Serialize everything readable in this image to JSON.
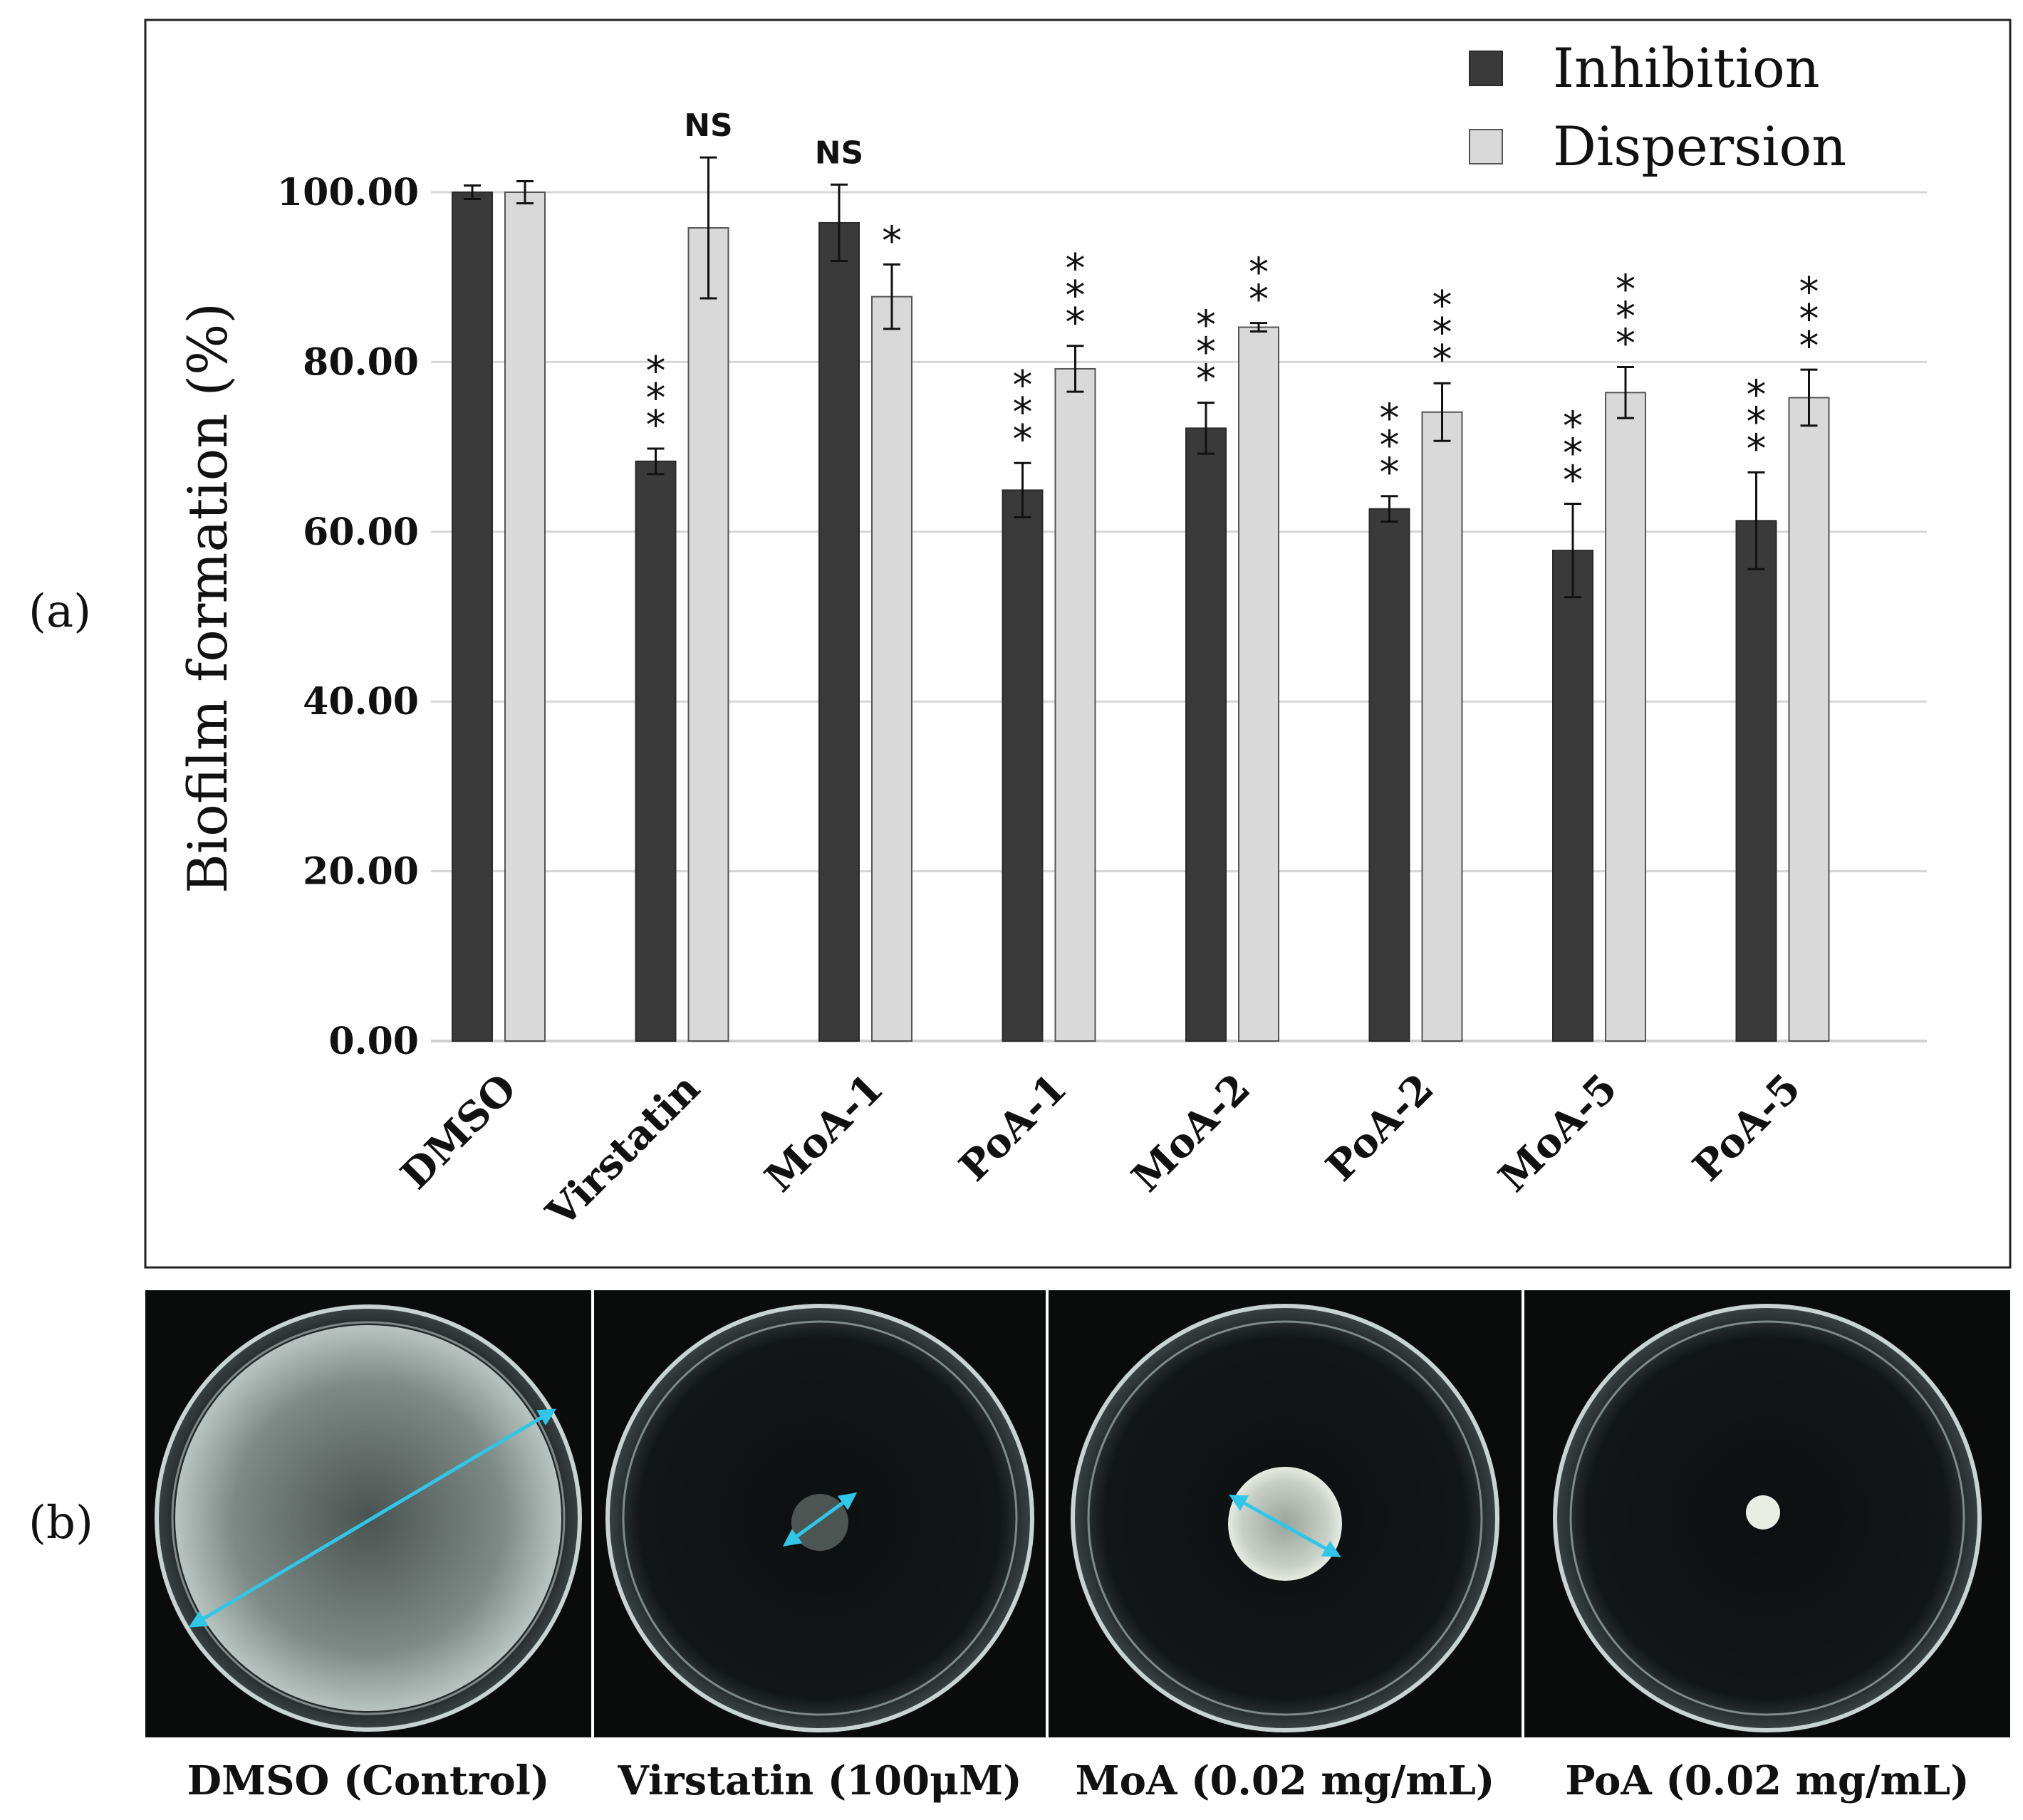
{
  "panel_labels": {
    "a": "(a)",
    "b": "(b)"
  },
  "chart_data": {
    "type": "bar",
    "ylabel": "Biofilm formation (%)",
    "xlabel": "",
    "ylim": [
      0,
      100
    ],
    "yticks": [
      "0.00",
      "20.00",
      "40.00",
      "60.00",
      "80.00",
      "100.00"
    ],
    "grid": true,
    "legend_position": "top-right",
    "categories": [
      "DMSO",
      "Virstatin",
      "MoA-1",
      "PoA-1",
      "MoA-2",
      "PoA-2",
      "MoA-5",
      "PoA-5"
    ],
    "series": [
      {
        "name": "Inhibition",
        "color": "#3a3a3a",
        "values": [
          100.0,
          68.3,
          96.4,
          64.9,
          72.2,
          62.7,
          57.8,
          61.3
        ],
        "errors": [
          0.8,
          1.5,
          4.5,
          3.2,
          3.0,
          1.5,
          5.5,
          5.7
        ],
        "significance": [
          "",
          "***",
          "NS",
          "***",
          "***",
          "***",
          "***",
          "***"
        ]
      },
      {
        "name": "Dispersion",
        "color": "#d9d9d9",
        "values": [
          100.0,
          95.8,
          87.7,
          79.2,
          84.1,
          74.1,
          76.4,
          75.8
        ],
        "errors": [
          1.3,
          8.3,
          3.8,
          2.7,
          0.5,
          3.4,
          3.0,
          3.3
        ],
        "significance": [
          "",
          "NS",
          "*",
          "***",
          "**",
          "***",
          "***",
          "***"
        ]
      }
    ]
  },
  "plates": [
    {
      "caption": "DMSO (Control)",
      "growth": "full-plate",
      "arrow": true
    },
    {
      "caption": "Virstatin (100μM)",
      "growth": "small",
      "arrow": true
    },
    {
      "caption": "MoA (0.02 mg/mL)",
      "growth": "medium",
      "arrow": true
    },
    {
      "caption": "PoA (0.02 mg/mL)",
      "growth": "dot",
      "arrow": false
    }
  ]
}
